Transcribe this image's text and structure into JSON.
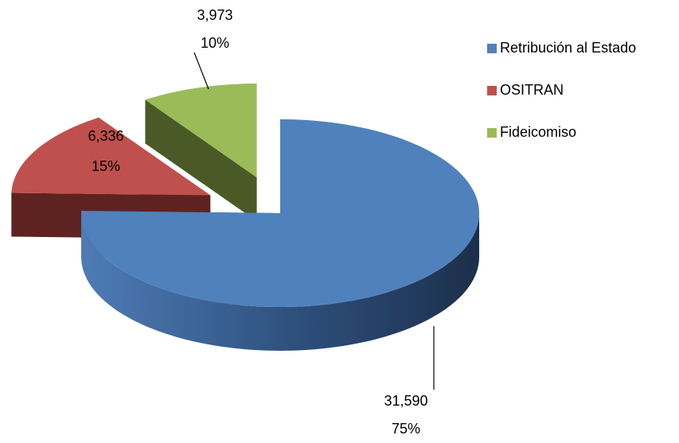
{
  "chart_data": {
    "type": "pie3d",
    "categories": [
      "Retribución al Estado",
      "OSITRAN",
      "Fideicomiso"
    ],
    "values": [
      31590,
      6336,
      3973
    ],
    "value_labels": [
      "31,590",
      "6,336",
      "3,973"
    ],
    "percentages": [
      75,
      15,
      10
    ],
    "percentage_labels": [
      "75%",
      "15%",
      "10%"
    ],
    "colors": [
      "#4f81bd",
      "#c0504d",
      "#9bbb59"
    ],
    "side_colors": [
      "#2b4a72",
      "#5e2320",
      "#4a5a26"
    ],
    "legend": "right"
  }
}
